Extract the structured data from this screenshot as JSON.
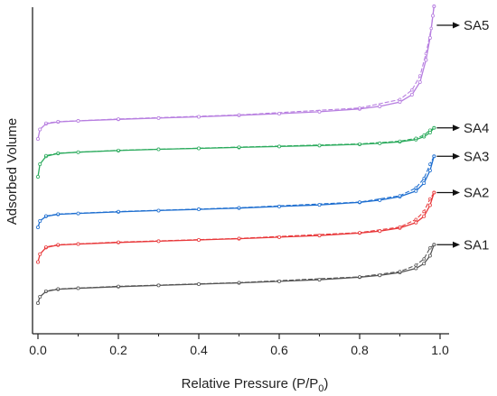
{
  "chart_data": {
    "type": "line",
    "xlabel_main": "Relative Pressure (P/P",
    "xlabel_sub": "0",
    "xlabel_end": ")",
    "ylabel": "Adsorbed Volume",
    "xlim": [
      0,
      1.0
    ],
    "x_ticks": [
      0.0,
      0.2,
      0.4,
      0.6,
      0.8,
      1.0
    ],
    "x_tick_labels": [
      "0.0",
      "0.2",
      "0.4",
      "0.6",
      "0.8",
      "1.0"
    ],
    "y_ticks_labeled": false,
    "grid": false,
    "legend": "right-side arrow labels",
    "series": [
      {
        "name": "SA1",
        "color": "#555555",
        "adsorption": [
          [
            0.0,
            0.06
          ],
          [
            0.005,
            0.08
          ],
          [
            0.02,
            0.097
          ],
          [
            0.05,
            0.104
          ],
          [
            0.1,
            0.107
          ],
          [
            0.2,
            0.112
          ],
          [
            0.3,
            0.116
          ],
          [
            0.4,
            0.12
          ],
          [
            0.5,
            0.124
          ],
          [
            0.6,
            0.129
          ],
          [
            0.7,
            0.134
          ],
          [
            0.8,
            0.142
          ],
          [
            0.85,
            0.148
          ],
          [
            0.9,
            0.157
          ],
          [
            0.94,
            0.17
          ],
          [
            0.96,
            0.185
          ],
          [
            0.975,
            0.21
          ],
          [
            0.985,
            0.245
          ]
        ],
        "desorption": [
          [
            0.985,
            0.245
          ],
          [
            0.975,
            0.235
          ],
          [
            0.96,
            0.2
          ],
          [
            0.94,
            0.18
          ],
          [
            0.9,
            0.16
          ],
          [
            0.8,
            0.143
          ],
          [
            0.5,
            0.125
          ],
          [
            0.2,
            0.113
          ],
          [
            0.05,
            0.105
          ],
          [
            0.02,
            0.098
          ]
        ]
      },
      {
        "name": "SA2",
        "color": "#e8383a",
        "adsorption": [
          [
            0.0,
            0.19
          ],
          [
            0.005,
            0.215
          ],
          [
            0.02,
            0.236
          ],
          [
            0.05,
            0.244
          ],
          [
            0.1,
            0.247
          ],
          [
            0.2,
            0.252
          ],
          [
            0.3,
            0.256
          ],
          [
            0.4,
            0.26
          ],
          [
            0.5,
            0.264
          ],
          [
            0.6,
            0.269
          ],
          [
            0.7,
            0.274
          ],
          [
            0.8,
            0.282
          ],
          [
            0.85,
            0.288
          ],
          [
            0.9,
            0.298
          ],
          [
            0.94,
            0.315
          ],
          [
            0.96,
            0.335
          ],
          [
            0.975,
            0.37
          ],
          [
            0.985,
            0.41
          ]
        ],
        "desorption": [
          [
            0.985,
            0.41
          ],
          [
            0.975,
            0.39
          ],
          [
            0.96,
            0.35
          ],
          [
            0.94,
            0.325
          ],
          [
            0.9,
            0.301
          ],
          [
            0.8,
            0.283
          ],
          [
            0.5,
            0.265
          ],
          [
            0.2,
            0.253
          ],
          [
            0.05,
            0.245
          ],
          [
            0.02,
            0.238
          ]
        ]
      },
      {
        "name": "SA3",
        "color": "#1f6fd0",
        "adsorption": [
          [
            0.0,
            0.3
          ],
          [
            0.005,
            0.32
          ],
          [
            0.02,
            0.335
          ],
          [
            0.05,
            0.341
          ],
          [
            0.1,
            0.344
          ],
          [
            0.2,
            0.349
          ],
          [
            0.3,
            0.353
          ],
          [
            0.4,
            0.357
          ],
          [
            0.5,
            0.361
          ],
          [
            0.6,
            0.366
          ],
          [
            0.7,
            0.371
          ],
          [
            0.8,
            0.379
          ],
          [
            0.85,
            0.386
          ],
          [
            0.9,
            0.397
          ],
          [
            0.94,
            0.415
          ],
          [
            0.96,
            0.44
          ],
          [
            0.975,
            0.48
          ],
          [
            0.985,
            0.525
          ]
        ],
        "desorption": [
          [
            0.985,
            0.525
          ],
          [
            0.975,
            0.5
          ],
          [
            0.96,
            0.455
          ],
          [
            0.94,
            0.425
          ],
          [
            0.9,
            0.4
          ],
          [
            0.8,
            0.38
          ],
          [
            0.5,
            0.362
          ],
          [
            0.2,
            0.35
          ],
          [
            0.05,
            0.342
          ],
          [
            0.02,
            0.336
          ]
        ]
      },
      {
        "name": "SA4",
        "color": "#2aaa5c",
        "adsorption": [
          [
            0.0,
            0.46
          ],
          [
            0.005,
            0.5
          ],
          [
            0.02,
            0.525
          ],
          [
            0.05,
            0.534
          ],
          [
            0.1,
            0.538
          ],
          [
            0.2,
            0.543
          ],
          [
            0.3,
            0.547
          ],
          [
            0.4,
            0.55
          ],
          [
            0.5,
            0.553
          ],
          [
            0.6,
            0.556
          ],
          [
            0.7,
            0.559
          ],
          [
            0.8,
            0.563
          ],
          [
            0.85,
            0.566
          ],
          [
            0.9,
            0.571
          ],
          [
            0.94,
            0.578
          ],
          [
            0.96,
            0.587
          ],
          [
            0.975,
            0.6
          ],
          [
            0.985,
            0.615
          ]
        ],
        "desorption": [
          [
            0.985,
            0.615
          ],
          [
            0.975,
            0.608
          ],
          [
            0.96,
            0.592
          ],
          [
            0.94,
            0.582
          ],
          [
            0.9,
            0.573
          ],
          [
            0.8,
            0.564
          ],
          [
            0.5,
            0.554
          ],
          [
            0.2,
            0.544
          ],
          [
            0.05,
            0.535
          ],
          [
            0.02,
            0.527
          ]
        ]
      },
      {
        "name": "SA5",
        "color": "#b77ee0",
        "adsorption": [
          [
            0.0,
            0.58
          ],
          [
            0.005,
            0.61
          ],
          [
            0.02,
            0.628
          ],
          [
            0.05,
            0.634
          ],
          [
            0.1,
            0.637
          ],
          [
            0.2,
            0.642
          ],
          [
            0.3,
            0.646
          ],
          [
            0.4,
            0.65
          ],
          [
            0.5,
            0.655
          ],
          [
            0.6,
            0.66
          ],
          [
            0.7,
            0.666
          ],
          [
            0.8,
            0.675
          ],
          [
            0.85,
            0.683
          ],
          [
            0.9,
            0.697
          ],
          [
            0.93,
            0.72
          ],
          [
            0.95,
            0.76
          ],
          [
            0.965,
            0.83
          ],
          [
            0.975,
            0.9
          ],
          [
            0.982,
            0.97
          ],
          [
            0.985,
            1.0
          ]
        ],
        "desorption": [
          [
            0.985,
            1.0
          ],
          [
            0.978,
            0.93
          ],
          [
            0.965,
            0.85
          ],
          [
            0.95,
            0.78
          ],
          [
            0.93,
            0.735
          ],
          [
            0.9,
            0.705
          ],
          [
            0.8,
            0.678
          ],
          [
            0.5,
            0.656
          ],
          [
            0.2,
            0.643
          ],
          [
            0.05,
            0.635
          ],
          [
            0.02,
            0.63
          ]
        ]
      }
    ]
  }
}
